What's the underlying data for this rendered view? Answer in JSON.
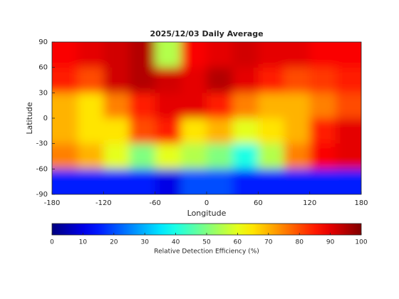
{
  "chart_data": {
    "type": "heatmap",
    "title": "2025/12/03 Daily Average",
    "x_label": "Longitude",
    "y_label": "Latitude",
    "xlim": [
      -180,
      180
    ],
    "xticks": [
      -180,
      -120,
      -60,
      0,
      60,
      120,
      180
    ],
    "ylim": [
      -90,
      90
    ],
    "yticks": [
      -90,
      -60,
      -30,
      0,
      30,
      60,
      90
    ],
    "z": [
      [
        88,
        90,
        92,
        95,
        55,
        88,
        90,
        92,
        90,
        90,
        88,
        88
      ],
      [
        85,
        80,
        92,
        95,
        92,
        90,
        95,
        90,
        85,
        80,
        82,
        85
      ],
      [
        70,
        65,
        75,
        85,
        90,
        90,
        85,
        75,
        70,
        70,
        75,
        80
      ],
      [
        70,
        65,
        65,
        80,
        85,
        65,
        70,
        60,
        65,
        70,
        85,
        90
      ],
      [
        75,
        70,
        60,
        50,
        60,
        55,
        50,
        40,
        55,
        75,
        88,
        90
      ],
      [
        15,
        15,
        15,
        15,
        10,
        20,
        20,
        15,
        15,
        15,
        15,
        15
      ]
    ],
    "colormap": "jet",
    "clim": [
      0,
      100
    ],
    "colorbar_ticks": [
      0,
      10,
      20,
      30,
      40,
      50,
      60,
      70,
      80,
      90,
      100
    ],
    "colorbar_label": "Relative Detection Efficiency (%)"
  }
}
